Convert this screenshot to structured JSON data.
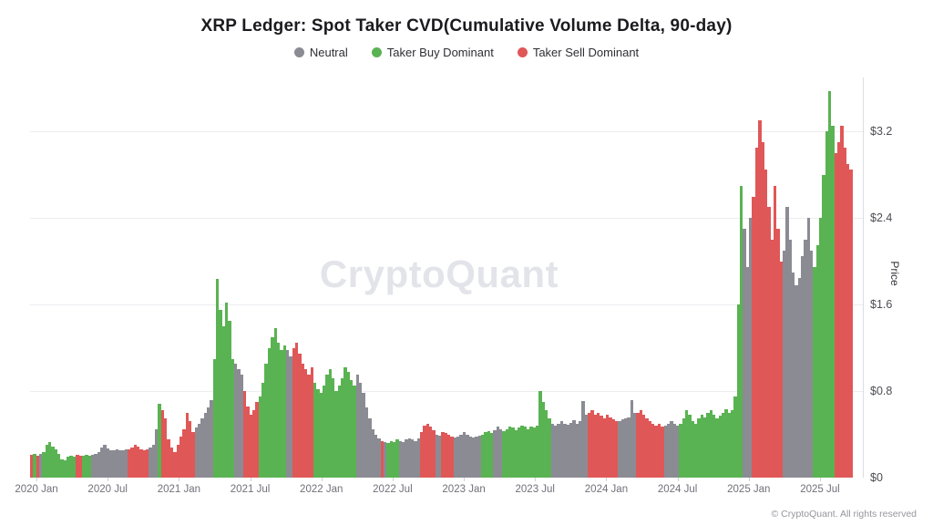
{
  "title": "XRP Ledger: Spot Taker CVD(Cumulative Volume Delta, 90-day)",
  "watermark": "CryptoQuant",
  "copyright": "© CryptoQuant. All rights reserved",
  "legend": [
    {
      "label": "Neutral",
      "color": "#8b8b94"
    },
    {
      "label": "Taker Buy Dominant",
      "color": "#5ab352"
    },
    {
      "label": "Taker Sell Dominant",
      "color": "#e05757"
    }
  ],
  "y_axis": {
    "title": "Price",
    "ticks": [
      {
        "label": "$0",
        "value": 0
      },
      {
        "label": "$0.8",
        "value": 0.8
      },
      {
        "label": "$1.6",
        "value": 1.6
      },
      {
        "label": "$2.4",
        "value": 2.4
      },
      {
        "label": "$3.2",
        "value": 3.2
      }
    ]
  },
  "x_axis": {
    "labels": [
      "2020 Jan",
      "2020 Jul",
      "2021 Jan",
      "2021 Jul",
      "2022 Jan",
      "2022 Jul",
      "2023 Jan",
      "2023 Jul",
      "2024 Jan",
      "2024 Jul",
      "2025 Jan",
      "2025 Jul"
    ]
  },
  "chart_data": {
    "type": "bar",
    "title": "XRP Ledger: Spot Taker CVD(Cumulative Volume Delta, 90-day)",
    "xlabel": "",
    "ylabel": "Price",
    "ylim": [
      0,
      3.7
    ],
    "x_range": [
      "2020-01",
      "2025-10"
    ],
    "grid": "horizontal",
    "legend_position": "top",
    "color_key": {
      "0": "Neutral",
      "1": "Taker Buy Dominant",
      "2": "Taker Sell Dominant"
    },
    "colors": {
      "0": "#8b8b94",
      "1": "#5ab352",
      "2": "#e05757"
    },
    "bars_format": "[price_usd, color_code] weekly from 2020-01 to 2025-10",
    "bars": [
      [
        0.21,
        2
      ],
      [
        0.22,
        1
      ],
      [
        0.2,
        2
      ],
      [
        0.22,
        0
      ],
      [
        0.24,
        1
      ],
      [
        0.3,
        1
      ],
      [
        0.33,
        1
      ],
      [
        0.29,
        1
      ],
      [
        0.26,
        1
      ],
      [
        0.22,
        1
      ],
      [
        0.17,
        1
      ],
      [
        0.16,
        1
      ],
      [
        0.19,
        1
      ],
      [
        0.2,
        1
      ],
      [
        0.19,
        1
      ],
      [
        0.21,
        2
      ],
      [
        0.2,
        2
      ],
      [
        0.2,
        1
      ],
      [
        0.21,
        1
      ],
      [
        0.2,
        1
      ],
      [
        0.21,
        0
      ],
      [
        0.22,
        0
      ],
      [
        0.24,
        0
      ],
      [
        0.28,
        0
      ],
      [
        0.3,
        0
      ],
      [
        0.27,
        0
      ],
      [
        0.25,
        0
      ],
      [
        0.25,
        0
      ],
      [
        0.26,
        0
      ],
      [
        0.25,
        0
      ],
      [
        0.25,
        0
      ],
      [
        0.26,
        0
      ],
      [
        0.26,
        2
      ],
      [
        0.28,
        2
      ],
      [
        0.3,
        2
      ],
      [
        0.29,
        2
      ],
      [
        0.26,
        2
      ],
      [
        0.25,
        2
      ],
      [
        0.26,
        2
      ],
      [
        0.28,
        0
      ],
      [
        0.3,
        0
      ],
      [
        0.45,
        0
      ],
      [
        0.68,
        1
      ],
      [
        0.62,
        2
      ],
      [
        0.55,
        2
      ],
      [
        0.35,
        2
      ],
      [
        0.28,
        2
      ],
      [
        0.24,
        2
      ],
      [
        0.3,
        2
      ],
      [
        0.38,
        2
      ],
      [
        0.45,
        2
      ],
      [
        0.6,
        2
      ],
      [
        0.52,
        2
      ],
      [
        0.42,
        2
      ],
      [
        0.46,
        0
      ],
      [
        0.5,
        0
      ],
      [
        0.55,
        0
      ],
      [
        0.6,
        0
      ],
      [
        0.65,
        0
      ],
      [
        0.72,
        0
      ],
      [
        1.1,
        1
      ],
      [
        1.84,
        1
      ],
      [
        1.55,
        1
      ],
      [
        1.4,
        1
      ],
      [
        1.62,
        1
      ],
      [
        1.45,
        1
      ],
      [
        1.1,
        1
      ],
      [
        1.05,
        0
      ],
      [
        1.0,
        0
      ],
      [
        0.95,
        0
      ],
      [
        0.8,
        2
      ],
      [
        0.66,
        2
      ],
      [
        0.58,
        2
      ],
      [
        0.62,
        2
      ],
      [
        0.7,
        2
      ],
      [
        0.75,
        1
      ],
      [
        0.88,
        1
      ],
      [
        1.05,
        1
      ],
      [
        1.2,
        1
      ],
      [
        1.3,
        1
      ],
      [
        1.38,
        1
      ],
      [
        1.25,
        1
      ],
      [
        1.18,
        1
      ],
      [
        1.22,
        1
      ],
      [
        1.18,
        0
      ],
      [
        1.12,
        0
      ],
      [
        1.2,
        2
      ],
      [
        1.25,
        2
      ],
      [
        1.15,
        2
      ],
      [
        1.05,
        2
      ],
      [
        1.0,
        2
      ],
      [
        0.95,
        2
      ],
      [
        1.02,
        2
      ],
      [
        0.88,
        1
      ],
      [
        0.82,
        1
      ],
      [
        0.78,
        1
      ],
      [
        0.85,
        1
      ],
      [
        0.95,
        1
      ],
      [
        1.0,
        1
      ],
      [
        0.92,
        1
      ],
      [
        0.8,
        1
      ],
      [
        0.85,
        1
      ],
      [
        0.92,
        1
      ],
      [
        1.02,
        1
      ],
      [
        0.98,
        1
      ],
      [
        0.9,
        1
      ],
      [
        0.85,
        1
      ],
      [
        0.95,
        0
      ],
      [
        0.88,
        0
      ],
      [
        0.78,
        0
      ],
      [
        0.65,
        0
      ],
      [
        0.55,
        0
      ],
      [
        0.45,
        0
      ],
      [
        0.4,
        0
      ],
      [
        0.36,
        0
      ],
      [
        0.34,
        2
      ],
      [
        0.33,
        0
      ],
      [
        0.32,
        1
      ],
      [
        0.34,
        1
      ],
      [
        0.33,
        1
      ],
      [
        0.35,
        1
      ],
      [
        0.34,
        0
      ],
      [
        0.33,
        0
      ],
      [
        0.35,
        0
      ],
      [
        0.36,
        0
      ],
      [
        0.35,
        0
      ],
      [
        0.34,
        0
      ],
      [
        0.36,
        0
      ],
      [
        0.42,
        2
      ],
      [
        0.48,
        2
      ],
      [
        0.5,
        2
      ],
      [
        0.47,
        2
      ],
      [
        0.44,
        2
      ],
      [
        0.4,
        0
      ],
      [
        0.39,
        0
      ],
      [
        0.42,
        2
      ],
      [
        0.41,
        2
      ],
      [
        0.4,
        2
      ],
      [
        0.38,
        2
      ],
      [
        0.37,
        0
      ],
      [
        0.38,
        0
      ],
      [
        0.4,
        0
      ],
      [
        0.42,
        0
      ],
      [
        0.4,
        0
      ],
      [
        0.38,
        0
      ],
      [
        0.37,
        0
      ],
      [
        0.38,
        0
      ],
      [
        0.39,
        0
      ],
      [
        0.4,
        1
      ],
      [
        0.42,
        1
      ],
      [
        0.43,
        1
      ],
      [
        0.41,
        1
      ],
      [
        0.44,
        0
      ],
      [
        0.47,
        0
      ],
      [
        0.45,
        0
      ],
      [
        0.43,
        1
      ],
      [
        0.45,
        1
      ],
      [
        0.47,
        1
      ],
      [
        0.46,
        1
      ],
      [
        0.44,
        1
      ],
      [
        0.46,
        1
      ],
      [
        0.48,
        1
      ],
      [
        0.47,
        1
      ],
      [
        0.45,
        1
      ],
      [
        0.47,
        1
      ],
      [
        0.46,
        1
      ],
      [
        0.48,
        1
      ],
      [
        0.8,
        1
      ],
      [
        0.7,
        1
      ],
      [
        0.62,
        1
      ],
      [
        0.55,
        1
      ],
      [
        0.5,
        0
      ],
      [
        0.48,
        0
      ],
      [
        0.5,
        0
      ],
      [
        0.52,
        0
      ],
      [
        0.5,
        0
      ],
      [
        0.49,
        0
      ],
      [
        0.51,
        0
      ],
      [
        0.53,
        0
      ],
      [
        0.5,
        0
      ],
      [
        0.52,
        0
      ],
      [
        0.71,
        0
      ],
      [
        0.58,
        0
      ],
      [
        0.6,
        2
      ],
      [
        0.62,
        2
      ],
      [
        0.58,
        2
      ],
      [
        0.6,
        2
      ],
      [
        0.57,
        2
      ],
      [
        0.55,
        2
      ],
      [
        0.58,
        2
      ],
      [
        0.56,
        2
      ],
      [
        0.54,
        2
      ],
      [
        0.52,
        2
      ],
      [
        0.52,
        0
      ],
      [
        0.54,
        0
      ],
      [
        0.55,
        0
      ],
      [
        0.56,
        0
      ],
      [
        0.72,
        0
      ],
      [
        0.6,
        0
      ],
      [
        0.6,
        2
      ],
      [
        0.62,
        2
      ],
      [
        0.58,
        2
      ],
      [
        0.55,
        2
      ],
      [
        0.52,
        2
      ],
      [
        0.5,
        2
      ],
      [
        0.48,
        2
      ],
      [
        0.5,
        2
      ],
      [
        0.47,
        2
      ],
      [
        0.48,
        0
      ],
      [
        0.5,
        0
      ],
      [
        0.52,
        0
      ],
      [
        0.5,
        0
      ],
      [
        0.48,
        0
      ],
      [
        0.5,
        1
      ],
      [
        0.55,
        1
      ],
      [
        0.62,
        1
      ],
      [
        0.58,
        1
      ],
      [
        0.52,
        1
      ],
      [
        0.5,
        1
      ],
      [
        0.55,
        1
      ],
      [
        0.58,
        1
      ],
      [
        0.56,
        1
      ],
      [
        0.6,
        1
      ],
      [
        0.62,
        1
      ],
      [
        0.58,
        1
      ],
      [
        0.55,
        1
      ],
      [
        0.57,
        1
      ],
      [
        0.6,
        1
      ],
      [
        0.63,
        1
      ],
      [
        0.6,
        1
      ],
      [
        0.62,
        1
      ],
      [
        0.75,
        1
      ],
      [
        1.6,
        1
      ],
      [
        2.7,
        1
      ],
      [
        2.3,
        0
      ],
      [
        1.95,
        0
      ],
      [
        2.4,
        0
      ],
      [
        2.6,
        2
      ],
      [
        3.05,
        2
      ],
      [
        3.3,
        2
      ],
      [
        3.1,
        2
      ],
      [
        2.85,
        2
      ],
      [
        2.5,
        2
      ],
      [
        2.2,
        2
      ],
      [
        2.7,
        2
      ],
      [
        2.3,
        2
      ],
      [
        2.0,
        2
      ],
      [
        2.1,
        0
      ],
      [
        2.5,
        0
      ],
      [
        2.2,
        0
      ],
      [
        1.9,
        0
      ],
      [
        1.78,
        0
      ],
      [
        1.85,
        0
      ],
      [
        2.05,
        0
      ],
      [
        2.2,
        0
      ],
      [
        2.4,
        0
      ],
      [
        2.1,
        0
      ],
      [
        1.95,
        1
      ],
      [
        2.15,
        1
      ],
      [
        2.4,
        1
      ],
      [
        2.8,
        1
      ],
      [
        3.2,
        1
      ],
      [
        3.57,
        1
      ],
      [
        3.25,
        1
      ],
      [
        3.0,
        2
      ],
      [
        3.1,
        2
      ],
      [
        3.25,
        2
      ],
      [
        3.05,
        2
      ],
      [
        2.9,
        2
      ],
      [
        2.85,
        2
      ]
    ]
  }
}
